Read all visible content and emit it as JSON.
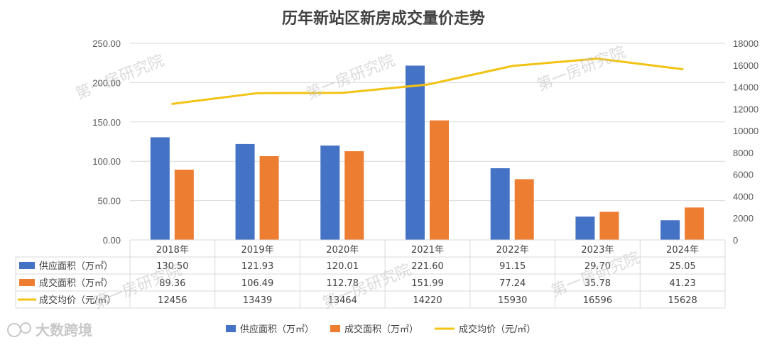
{
  "chart_data": {
    "type": "bar",
    "title": "历年新站区新房成交量价走势",
    "categories": [
      "2018年",
      "2019年",
      "2020年",
      "2021年",
      "2022年",
      "2023年",
      "2024年"
    ],
    "series": [
      {
        "name": "供应面积（万㎡）",
        "type": "bar",
        "axis": "left",
        "color": "#4472C4",
        "values": [
          130.5,
          121.93,
          120.01,
          221.6,
          91.15,
          29.7,
          25.05
        ],
        "labels": [
          "130.50",
          "121.93",
          "120.01",
          "221.60",
          "91.15",
          "29.70",
          "25.05"
        ]
      },
      {
        "name": "成交面积（万㎡）",
        "type": "bar",
        "axis": "left",
        "color": "#ED7D31",
        "values": [
          89.36,
          106.49,
          112.78,
          151.99,
          77.24,
          35.78,
          41.23
        ],
        "labels": [
          "89.36",
          "106.49",
          "112.78",
          "151.99",
          "77.24",
          "35.78",
          "41.23"
        ]
      },
      {
        "name": "成交均价（元/㎡）",
        "type": "line",
        "axis": "right",
        "color": "#F2C314",
        "values": [
          12456,
          13439,
          13464,
          14220,
          15930,
          16596,
          15628
        ],
        "labels": [
          "12456",
          "13439",
          "13464",
          "14220",
          "15930",
          "16596",
          "15628"
        ]
      }
    ],
    "left_axis": {
      "ylim": [
        0,
        250
      ],
      "ticks": [
        "0.00",
        "50.00",
        "100.00",
        "150.00",
        "200.00",
        "250.00"
      ]
    },
    "right_axis": {
      "ylim": [
        0,
        18000
      ],
      "ticks": [
        "0",
        "2000",
        "4000",
        "6000",
        "8000",
        "10000",
        "12000",
        "14000",
        "16000",
        "18000"
      ]
    },
    "legend_placement": "bottom",
    "grid": true,
    "data_table": true
  },
  "legend": {
    "supply": "供应面积（万㎡）",
    "deal": "成交面积（万㎡）",
    "price": "成交均价（元/㎡）"
  },
  "watermark": "第一房研究院",
  "logo_text": "大数跨境"
}
